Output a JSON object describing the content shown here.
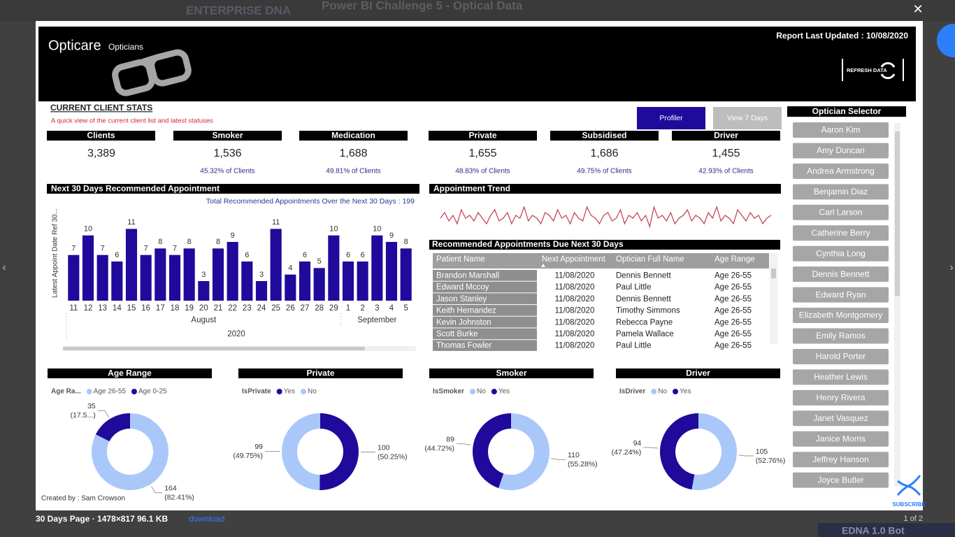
{
  "browser": {
    "site": "ENTERPRISE DNA",
    "post_title": "Power BI Challenge 5 - Optical Data",
    "file_info": "30 Days Page · 1478×817 96.1 KB",
    "download": "download",
    "pager": "1 of 2",
    "bot": "EDNA 1.0 Bot",
    "subscribe": "SUBSCRIBE"
  },
  "header": {
    "brand": "Opticare",
    "sub": "Opticians",
    "updated": "Report Last Updated : 10/08/2020",
    "refresh": "REFRESH DATA"
  },
  "stats": {
    "title": "CURRENT CLIENT STATS",
    "subtitle": "A quick view of the current client list and latest statuses",
    "buttons": [
      "Profiler",
      "View 7 Days"
    ],
    "cards": [
      {
        "label": "Clients",
        "value": "3,389"
      },
      {
        "label": "Smoker",
        "value": "1,536",
        "share": "45.32% of Clients"
      },
      {
        "label": "Medication",
        "value": "1,688",
        "share": "49.81% of Clients"
      },
      {
        "label": "Private",
        "value": "1,655",
        "share": "48.83% of Clients"
      },
      {
        "label": "Subsidised",
        "value": "1,686",
        "share": "49.75% of Clients"
      },
      {
        "label": "Driver",
        "value": "1,455",
        "share": "42.93% of Clients"
      }
    ]
  },
  "chart_data": [
    {
      "type": "bar",
      "title": "Next 30 Days Recommended Appointment",
      "subtitle": "Total Recommended Appointments Over the Next 30 Days : 199",
      "y_label": "Latest Appoint Date Ref 30...",
      "categories": [
        "11",
        "12",
        "13",
        "14",
        "15",
        "16",
        "17",
        "18",
        "19",
        "20",
        "21",
        "22",
        "23",
        "24",
        "25",
        "26",
        "27",
        "28",
        "29",
        "1",
        "2",
        "3",
        "4",
        "5"
      ],
      "values": [
        7,
        10,
        7,
        6,
        11,
        7,
        8,
        7,
        8,
        3,
        8,
        9,
        6,
        3,
        11,
        4,
        6,
        5,
        10,
        6,
        6,
        10,
        9,
        8
      ],
      "months": [
        "August",
        "September"
      ],
      "year": "2020",
      "color": "#1f0a9c",
      "ylim": [
        0,
        12
      ]
    },
    {
      "type": "line",
      "title": "Appointment Trend",
      "color": "#c23a52",
      "ylim": [
        0,
        10
      ],
      "values": [
        5,
        7,
        4,
        6,
        3,
        8,
        5,
        6,
        4,
        7,
        5,
        3,
        6,
        8,
        4,
        5,
        7,
        3,
        6,
        5,
        9,
        4,
        6,
        5,
        3,
        7,
        6,
        4,
        8,
        5,
        6,
        3,
        7,
        5,
        4,
        9,
        6,
        5,
        3,
        6,
        7,
        4,
        5,
        8,
        3,
        6,
        5,
        7,
        4,
        6,
        2,
        9,
        5,
        6,
        4,
        7,
        3,
        5,
        6,
        8,
        4,
        6,
        5,
        3,
        7,
        5,
        9,
        4,
        6,
        5,
        3,
        8,
        6,
        4,
        7,
        5,
        6,
        3,
        5,
        6
      ]
    },
    {
      "type": "pie",
      "title": "Age Range",
      "legend_title": "Age Ra...",
      "categories": [
        "Age 26-55",
        "Age 0-25"
      ],
      "values": [
        164,
        35
      ],
      "percent_labels": [
        "(82.41%)",
        "(17.5...)"
      ],
      "colors": [
        "#a9c8f9",
        "#1f0a9c"
      ]
    },
    {
      "type": "pie",
      "title": "Private",
      "legend_title": "IsPrivate",
      "categories": [
        "Yes",
        "No"
      ],
      "values": [
        100,
        99
      ],
      "percent_labels": [
        "(50.25%)",
        "(49.75%)"
      ],
      "colors": [
        "#1f0a9c",
        "#a9c8f9"
      ]
    },
    {
      "type": "pie",
      "title": "Smoker",
      "legend_title": "IsSmoker",
      "categories": [
        "No",
        "Yes"
      ],
      "values": [
        110,
        89
      ],
      "percent_labels": [
        "(55.28%)",
        "(44.72%)"
      ],
      "colors": [
        "#a9c8f9",
        "#1f0a9c"
      ]
    },
    {
      "type": "pie",
      "title": "Driver",
      "legend_title": "IsDriver",
      "categories": [
        "No",
        "Yes"
      ],
      "values": [
        105,
        94
      ],
      "percent_labels": [
        "(52.76%)",
        "(47.24%)"
      ],
      "colors": [
        "#a9c8f9",
        "#1f0a9c"
      ]
    }
  ],
  "table": {
    "title": "Recommended Appointments Due Next 30 Days",
    "columns": [
      "Patient Name",
      "Next Appointment",
      "Optician Full Name",
      "Age Range"
    ],
    "rows": [
      [
        "Brandon Marshall",
        "11/08/2020",
        "Dennis Bennett",
        "Age 26-55"
      ],
      [
        "Edward Mccoy",
        "11/08/2020",
        "Paul Little",
        "Age 26-55"
      ],
      [
        "Jason Stanley",
        "11/08/2020",
        "Dennis Bennett",
        "Age 26-55"
      ],
      [
        "Keith Hernandez",
        "11/08/2020",
        "Timothy Simmons",
        "Age 26-55"
      ],
      [
        "Kevin Johnston",
        "11/08/2020",
        "Rebecca Payne",
        "Age 26-55"
      ],
      [
        "Scott Burke",
        "11/08/2020",
        "Pamela Wallace",
        "Age 26-55"
      ],
      [
        "Thomas Fowler",
        "11/08/2020",
        "Paul Little",
        "Age 26-55"
      ]
    ]
  },
  "selector": {
    "title": "Optician Selector",
    "names": [
      "Aaron Kim",
      "Amy Duncan",
      "Andrea Armstrong",
      "Benjamin Diaz",
      "Carl Larson",
      "Catherine Berry",
      "Cynthia Long",
      "Dennis Bennett",
      "Edward Ryan",
      "Elizabeth Montgomery",
      "Emily Ramos",
      "Harold Porter",
      "Heather Lewis",
      "Henry Rivera",
      "Janet Vasquez",
      "Janice Morris",
      "Jeffrey Hanson",
      "Joyce Butler"
    ]
  },
  "footer": {
    "credit": "Created by : Sam Crowson"
  }
}
